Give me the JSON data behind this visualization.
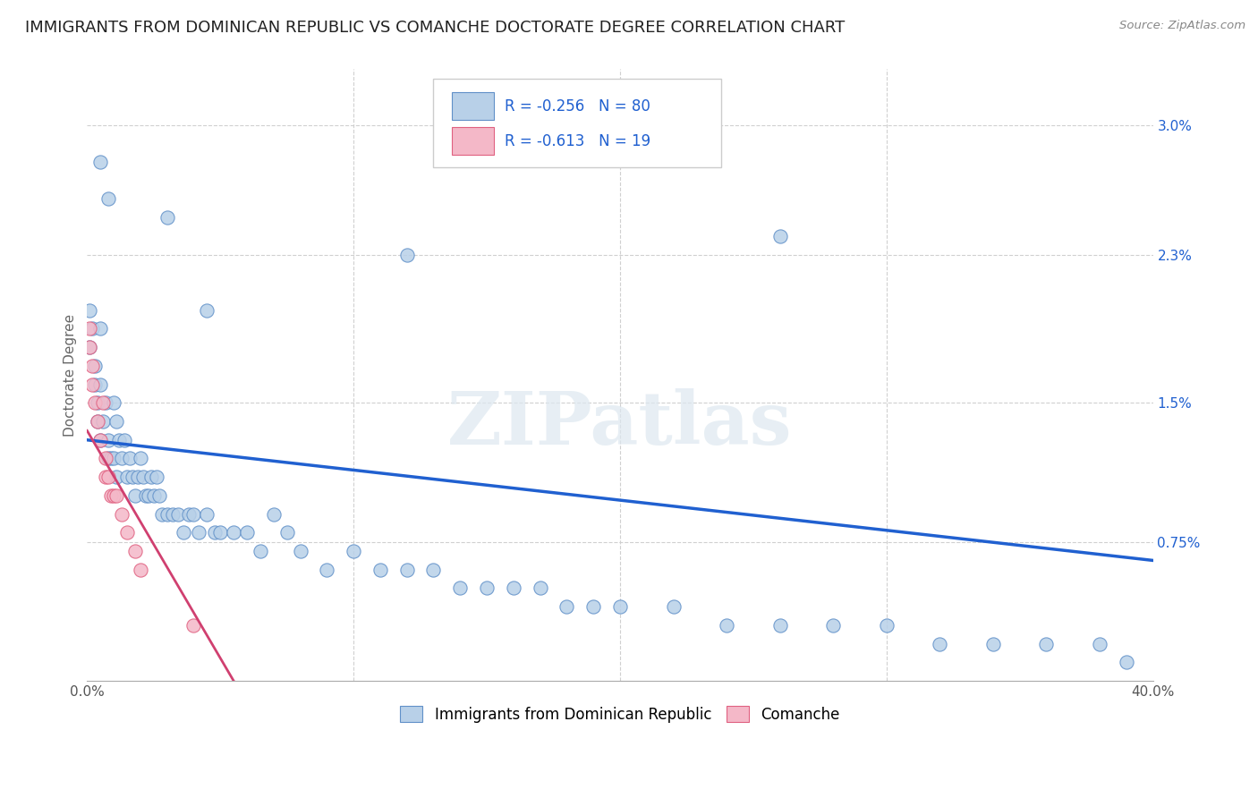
{
  "title": "IMMIGRANTS FROM DOMINICAN REPUBLIC VS COMANCHE DOCTORATE DEGREE CORRELATION CHART",
  "source": "Source: ZipAtlas.com",
  "ylabel": "Doctorate Degree",
  "ytick_vals": [
    0.0075,
    0.015,
    0.023,
    0.03
  ],
  "ytick_strs": [
    "0.75%",
    "1.5%",
    "2.3%",
    "3.0%"
  ],
  "xlim": [
    0.0,
    0.4
  ],
  "ylim": [
    0.0,
    0.033
  ],
  "legend_blue_label": "Immigrants from Dominican Republic",
  "legend_pink_label": "Comanche",
  "R_blue": -0.256,
  "N_blue": 80,
  "R_pink": -0.613,
  "N_pink": 19,
  "blue_fill": "#b8d0e8",
  "pink_fill": "#f4b8c8",
  "blue_edge": "#6090c8",
  "pink_edge": "#e06080",
  "line_blue": "#2060d0",
  "line_pink": "#d04070",
  "watermark": "ZIPatlas",
  "blue_scatter_x": [
    0.001,
    0.001,
    0.002,
    0.003,
    0.003,
    0.004,
    0.004,
    0.005,
    0.005,
    0.005,
    0.006,
    0.007,
    0.008,
    0.008,
    0.009,
    0.01,
    0.01,
    0.011,
    0.011,
    0.012,
    0.013,
    0.014,
    0.015,
    0.016,
    0.017,
    0.018,
    0.019,
    0.02,
    0.021,
    0.022,
    0.023,
    0.024,
    0.025,
    0.026,
    0.027,
    0.028,
    0.03,
    0.032,
    0.034,
    0.036,
    0.038,
    0.04,
    0.042,
    0.045,
    0.048,
    0.05,
    0.055,
    0.06,
    0.065,
    0.07,
    0.075,
    0.08,
    0.09,
    0.1,
    0.11,
    0.12,
    0.13,
    0.14,
    0.15,
    0.16,
    0.17,
    0.18,
    0.19,
    0.2,
    0.22,
    0.24,
    0.26,
    0.28,
    0.3,
    0.32,
    0.34,
    0.36,
    0.38,
    0.39,
    0.005,
    0.008,
    0.03,
    0.045,
    0.12,
    0.26
  ],
  "blue_scatter_y": [
    0.02,
    0.018,
    0.019,
    0.017,
    0.016,
    0.015,
    0.014,
    0.019,
    0.016,
    0.013,
    0.014,
    0.015,
    0.013,
    0.012,
    0.012,
    0.015,
    0.012,
    0.014,
    0.011,
    0.013,
    0.012,
    0.013,
    0.011,
    0.012,
    0.011,
    0.01,
    0.011,
    0.012,
    0.011,
    0.01,
    0.01,
    0.011,
    0.01,
    0.011,
    0.01,
    0.009,
    0.009,
    0.009,
    0.009,
    0.008,
    0.009,
    0.009,
    0.008,
    0.009,
    0.008,
    0.008,
    0.008,
    0.008,
    0.007,
    0.009,
    0.008,
    0.007,
    0.006,
    0.007,
    0.006,
    0.006,
    0.006,
    0.005,
    0.005,
    0.005,
    0.005,
    0.004,
    0.004,
    0.004,
    0.004,
    0.003,
    0.003,
    0.003,
    0.003,
    0.002,
    0.002,
    0.002,
    0.002,
    0.001,
    0.028,
    0.026,
    0.025,
    0.02,
    0.023,
    0.024
  ],
  "pink_scatter_x": [
    0.001,
    0.001,
    0.002,
    0.002,
    0.003,
    0.004,
    0.005,
    0.006,
    0.007,
    0.007,
    0.008,
    0.009,
    0.01,
    0.011,
    0.013,
    0.015,
    0.018,
    0.02,
    0.04
  ],
  "pink_scatter_y": [
    0.019,
    0.018,
    0.017,
    0.016,
    0.015,
    0.014,
    0.013,
    0.015,
    0.012,
    0.011,
    0.011,
    0.01,
    0.01,
    0.01,
    0.009,
    0.008,
    0.007,
    0.006,
    0.003
  ],
  "blue_line_x": [
    0.0,
    0.4
  ],
  "blue_line_y": [
    0.013,
    0.0065
  ],
  "pink_line_x": [
    0.0,
    0.055
  ],
  "pink_line_y": [
    0.0135,
    0.0
  ],
  "grid_color": "#d0d0d0",
  "background_color": "#ffffff",
  "title_fontsize": 13,
  "axis_label_fontsize": 11,
  "tick_fontsize": 11,
  "legend_fontsize": 12
}
